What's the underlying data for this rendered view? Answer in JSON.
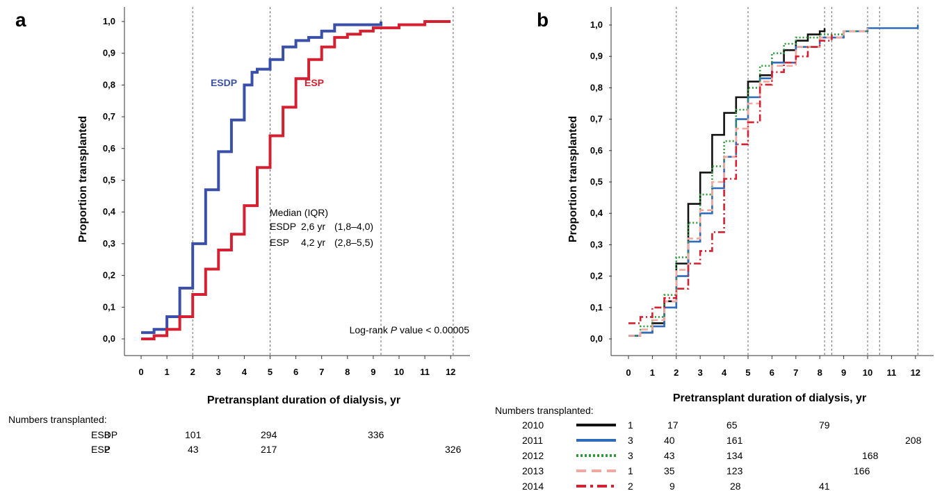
{
  "chart_data": [
    {
      "panel": "a",
      "type": "line",
      "xlabel": "Pretransplant duration of dialysis, yr",
      "ylabel": "Proportion transplanted",
      "xlim": [
        0,
        12
      ],
      "ylim": [
        0,
        1
      ],
      "x_ticks": [
        "0",
        "1",
        "2",
        "3",
        "4",
        "5",
        "6",
        "7",
        "8",
        "9",
        "10",
        "11",
        "12"
      ],
      "y_ticks": [
        "0,0",
        "0,1",
        "0,2",
        "0,3",
        "0,4",
        "0,5",
        "0,6",
        "0,7",
        "0,8",
        "0,9",
        "1,0"
      ],
      "vlines": [
        2,
        5,
        9.3,
        12.1
      ],
      "series": [
        {
          "name": "ESDP",
          "color": "#3a4fa8",
          "x": [
            0,
            0.5,
            1,
            1.5,
            2,
            2.5,
            3,
            3.5,
            4,
            4.3,
            4.5,
            5,
            5.5,
            6,
            6.5,
            7,
            7.5,
            8,
            8.5,
            9,
            9.3
          ],
          "y": [
            0.02,
            0.03,
            0.07,
            0.16,
            0.3,
            0.47,
            0.59,
            0.69,
            0.8,
            0.84,
            0.85,
            0.88,
            0.92,
            0.94,
            0.95,
            0.97,
            0.99,
            0.99,
            0.99,
            0.99,
            1.0
          ]
        },
        {
          "name": "ESP",
          "color": "#d42030",
          "x": [
            0,
            0.5,
            1,
            1.5,
            2,
            2.5,
            3,
            3.5,
            4,
            4.5,
            5,
            5.5,
            6,
            6.5,
            7,
            7.5,
            8,
            8.5,
            9,
            9.5,
            10,
            11,
            12
          ],
          "y": [
            0.0,
            0.01,
            0.03,
            0.07,
            0.14,
            0.22,
            0.28,
            0.33,
            0.42,
            0.54,
            0.64,
            0.73,
            0.82,
            0.88,
            0.92,
            0.95,
            0.96,
            0.97,
            0.98,
            0.98,
            0.99,
            1.0,
            1.0
          ]
        }
      ],
      "median_title": "Median (IQR)",
      "median_rows": [
        {
          "group": "ESDP",
          "value": "2,6 yr",
          "iqr": "(1,8–4,0)"
        },
        {
          "group": "ESP",
          "value": "4,2 yr",
          "iqr": "(2,8–5,5)"
        }
      ],
      "logrank_prefix": "Log-rank ",
      "logrank_p": "P",
      "logrank_suffix": " value < 0.00005",
      "numbers_title": "Numbers transplanted:",
      "numbers": [
        {
          "label": "ESDP",
          "values": [
            "8",
            "101",
            "294",
            "336"
          ]
        },
        {
          "label": "ESP",
          "values": [
            "2",
            "43",
            "217",
            "326"
          ]
        }
      ]
    },
    {
      "panel": "b",
      "type": "line",
      "xlabel": "Pretransplant duration of dialysis, yr",
      "ylabel": "Proportion transplanted",
      "xlim": [
        0,
        12
      ],
      "ylim": [
        0,
        1
      ],
      "x_ticks": [
        "0",
        "1",
        "2",
        "3",
        "4",
        "5",
        "6",
        "7",
        "8",
        "9",
        "10",
        "11",
        "12"
      ],
      "y_ticks": [
        "0,0",
        "0,1",
        "0,2",
        "0,3",
        "0,4",
        "0,5",
        "0,6",
        "0,7",
        "0,8",
        "0,9",
        "1,0"
      ],
      "vlines": [
        2,
        5,
        8.2,
        8.5,
        10,
        10.5,
        12.1
      ],
      "series": [
        {
          "name": "2010",
          "color": "#111111",
          "dash": "solid",
          "x": [
            0,
            0.5,
            1,
            1.5,
            2,
            2.5,
            3,
            3.5,
            4,
            4.5,
            5,
            5.5,
            6,
            6.5,
            7,
            7.5,
            8,
            8.2
          ],
          "y": [
            0.01,
            0.02,
            0.05,
            0.12,
            0.24,
            0.43,
            0.53,
            0.65,
            0.72,
            0.77,
            0.82,
            0.84,
            0.88,
            0.92,
            0.95,
            0.97,
            0.98,
            0.99
          ]
        },
        {
          "name": "2011",
          "color": "#2e6bb8",
          "dash": "solid",
          "x": [
            0,
            0.5,
            1,
            1.5,
            2,
            2.5,
            3,
            3.5,
            4,
            4.5,
            5,
            5.5,
            6,
            7,
            8,
            9,
            10,
            11,
            12.1
          ],
          "y": [
            0.01,
            0.02,
            0.04,
            0.1,
            0.2,
            0.31,
            0.4,
            0.48,
            0.58,
            0.7,
            0.77,
            0.83,
            0.88,
            0.93,
            0.96,
            0.98,
            0.99,
            0.99,
            1.0
          ]
        },
        {
          "name": "2012",
          "color": "#2e9a3a",
          "dash": "dotted",
          "x": [
            0,
            0.5,
            1,
            1.5,
            2,
            2.5,
            3,
            3.5,
            4,
            4.5,
            5,
            5.5,
            6,
            6.5,
            7,
            8,
            9,
            10
          ],
          "y": [
            0.01,
            0.04,
            0.07,
            0.14,
            0.26,
            0.37,
            0.46,
            0.55,
            0.63,
            0.73,
            0.8,
            0.87,
            0.91,
            0.94,
            0.96,
            0.97,
            0.98,
            0.99
          ]
        },
        {
          "name": "2013",
          "color": "#f0a8a0",
          "dash": "dashed",
          "x": [
            0,
            0.5,
            1,
            1.5,
            2,
            2.5,
            3,
            3.5,
            4,
            4.5,
            5,
            5.5,
            6,
            7,
            8,
            9,
            10
          ],
          "y": [
            0.01,
            0.03,
            0.06,
            0.12,
            0.22,
            0.32,
            0.41,
            0.5,
            0.58,
            0.67,
            0.75,
            0.82,
            0.87,
            0.93,
            0.96,
            0.98,
            0.99
          ]
        },
        {
          "name": "2014",
          "color": "#d42030",
          "dash": "dashdot",
          "x": [
            0,
            0.3,
            0.5,
            1,
            1.5,
            2,
            2.5,
            3,
            3.5,
            4,
            4.5,
            5,
            5.5,
            6,
            6.5,
            7,
            7.5,
            8,
            8.5
          ],
          "y": [
            0.05,
            0.05,
            0.07,
            0.1,
            0.13,
            0.16,
            0.24,
            0.28,
            0.34,
            0.51,
            0.62,
            0.69,
            0.81,
            0.85,
            0.88,
            0.9,
            0.93,
            0.95,
            0.97
          ]
        }
      ],
      "numbers_title": "Numbers transplanted:",
      "numbers": [
        {
          "label": "2010",
          "values": [
            "1",
            "17",
            "65",
            "79"
          ]
        },
        {
          "label": "2011",
          "values": [
            "3",
            "40",
            "161",
            "208"
          ]
        },
        {
          "label": "2012",
          "values": [
            "3",
            "43",
            "134",
            "168"
          ]
        },
        {
          "label": "2013",
          "values": [
            "1",
            "35",
            "123",
            "166"
          ]
        },
        {
          "label": "2014",
          "values": [
            "2",
            "9",
            "28",
            "41"
          ]
        }
      ]
    }
  ]
}
